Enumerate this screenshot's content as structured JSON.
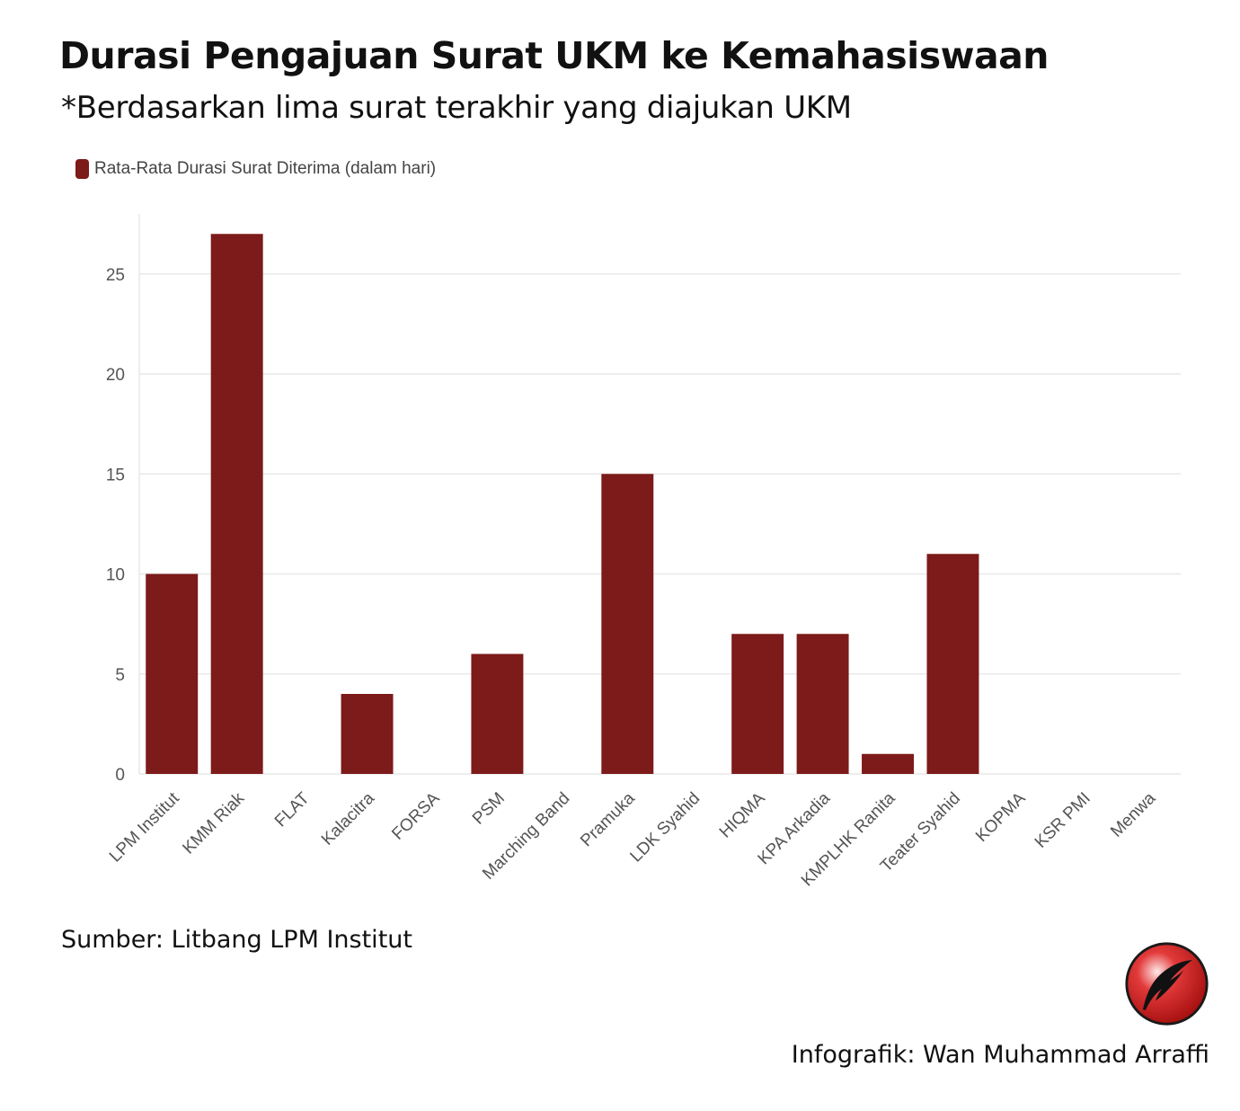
{
  "header": {
    "title": "Durasi Pengajuan Surat UKM ke Kemahasiswaan",
    "subtitle": "*Berdasarkan lima surat terakhir yang diajukan UKM"
  },
  "footer": {
    "source": "Sumber: Litbang LPM Institut",
    "credit": "Infografik: Wan Muhammad Arraffi"
  },
  "colors": {
    "bar": "#7d1a1a",
    "grid": "#e8e8e8",
    "tick_text": "#555555"
  },
  "logo": {
    "icon": "quill-pen-logo-icon"
  },
  "chart_data": {
    "type": "bar",
    "categories": [
      "LPM Institut",
      "KMM Riak",
      "FLAT",
      "Kalacitra",
      "FORSA",
      "PSM",
      "Marching Band",
      "Pramuka",
      "LDK Syahid",
      "HIQMA",
      "KPA Arkadia",
      "KMPLHK Ranita",
      "Teater Syahid",
      "KOPMA",
      "KSR PMI",
      "Menwa"
    ],
    "series": [
      {
        "name": "Rata-Rata Durasi Surat Diterima (dalam hari)",
        "values": [
          10,
          27,
          0,
          4,
          0,
          6,
          0,
          15,
          0,
          7,
          7,
          1,
          11,
          0,
          0,
          0
        ]
      }
    ],
    "ylim": [
      0,
      28
    ],
    "yticks": [
      0,
      5,
      10,
      15,
      20,
      25
    ],
    "grid": true,
    "legend": "top-left",
    "xtick_rotation": -45
  }
}
